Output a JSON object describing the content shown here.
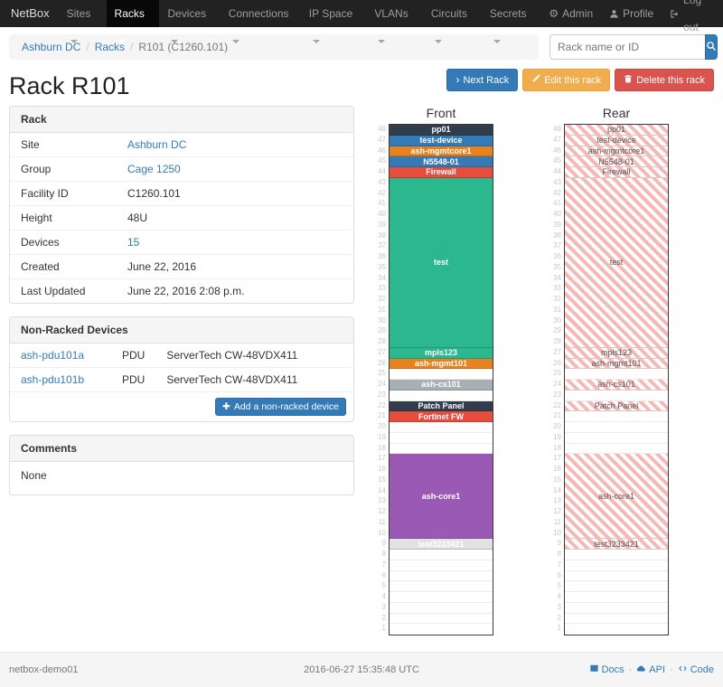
{
  "navbar": {
    "brand": "NetBox",
    "items": [
      {
        "label": "Sites",
        "active": false
      },
      {
        "label": "Racks",
        "active": true
      },
      {
        "label": "Devices",
        "active": false
      },
      {
        "label": "Connections",
        "active": false
      },
      {
        "label": "IP Space",
        "active": false
      },
      {
        "label": "VLANs",
        "active": false
      },
      {
        "label": "Circuits",
        "active": false
      },
      {
        "label": "Secrets",
        "active": false
      }
    ],
    "admin_label": "Admin",
    "profile_label": "Profile",
    "logout_label": "Log out",
    "icons": [
      "gear-icon",
      "user-icon",
      "logout-icon"
    ]
  },
  "breadcrumb": {
    "items": [
      {
        "label": "Ashburn DC",
        "link": true
      },
      {
        "label": "Racks",
        "link": true
      },
      {
        "label": "R101 (C1260.101)",
        "link": false
      }
    ]
  },
  "search": {
    "placeholder": "Rack name or ID",
    "icon": "search-icon"
  },
  "page": {
    "title": "Rack R101",
    "next_button": "Next Rack",
    "edit_button": "Edit this rack",
    "delete_button": "Delete this rack"
  },
  "rack_panel": {
    "title": "Rack",
    "rows": [
      {
        "label": "Site",
        "value": "Ashburn DC",
        "link": true
      },
      {
        "label": "Group",
        "value": "Cage 1250",
        "link": true
      },
      {
        "label": "Facility ID",
        "value": "C1260.101",
        "link": false
      },
      {
        "label": "Height",
        "value": "48U",
        "link": false
      },
      {
        "label": "Devices",
        "value": "15",
        "link": true
      },
      {
        "label": "Created",
        "value": "June 22, 2016",
        "link": false
      },
      {
        "label": "Last Updated",
        "value": "June 22, 2016 2:08 p.m.",
        "link": false
      }
    ]
  },
  "non_racked_panel": {
    "title": "Non-Racked Devices",
    "rows": [
      {
        "name": "ash-pdu101a",
        "role": "PDU",
        "type": "ServerTech CW-48VDX411"
      },
      {
        "name": "ash-pdu101b",
        "role": "PDU",
        "type": "ServerTech CW-48VDX411"
      }
    ],
    "add_button": "Add a non-racked device"
  },
  "comments_panel": {
    "title": "Comments",
    "content": "None"
  },
  "elevations": {
    "front_title": "Front",
    "rear_title": "Rear",
    "units_total": 48,
    "hatch_color": "#f5b8b4",
    "devices": [
      {
        "name": "pp01",
        "top_u": 48,
        "height": 1,
        "color": "#313d4c",
        "text": "#ffffff",
        "shows_rear": true
      },
      {
        "name": "test-device",
        "top_u": 47,
        "height": 1,
        "color": "#337ab7",
        "text": "#ffffff",
        "shows_rear": true
      },
      {
        "name": "ash-mgmtcore1",
        "top_u": 46,
        "height": 1,
        "color": "#e8821e",
        "text": "#ffffff",
        "shows_rear": true
      },
      {
        "name": "N5548-01",
        "top_u": 45,
        "height": 1,
        "color": "#337ab7",
        "text": "#ffffff",
        "shows_rear": true
      },
      {
        "name": "Firewall",
        "top_u": 44,
        "height": 1,
        "color": "#e74c3c",
        "text": "#ffffff",
        "shows_rear": true
      },
      {
        "name": "test",
        "top_u": 43,
        "height": 16,
        "color": "#2bb88e",
        "text": "#ffffff",
        "shows_rear": true
      },
      {
        "name": "mpls123",
        "top_u": 27,
        "height": 1,
        "color": "#2bb88e",
        "text": "#ffffff",
        "shows_rear": true
      },
      {
        "name": "ash-mgmt101",
        "top_u": 26,
        "height": 1,
        "color": "#e8821e",
        "text": "#ffffff",
        "shows_rear": true
      },
      {
        "name": "ash-cs101",
        "top_u": 24,
        "height": 1,
        "color": "#a8b0b5",
        "text": "#ffffff",
        "shows_rear": true
      },
      {
        "name": "Patch Panel",
        "top_u": 22,
        "height": 1,
        "color": "#313d4c",
        "text": "#ffffff",
        "shows_rear": true
      },
      {
        "name": "Fortinet FW",
        "top_u": 21,
        "height": 1,
        "color": "#e74c3c",
        "text": "#ffffff",
        "shows_rear": false
      },
      {
        "name": "ash-core1",
        "top_u": 17,
        "height": 8,
        "color": "#9b59b6",
        "text": "#ffffff",
        "shows_rear": true
      },
      {
        "name": "test3233421",
        "top_u": 9,
        "height": 1,
        "color": "#e2e2e2",
        "text": "#ffffff",
        "shows_rear": true
      }
    ]
  },
  "footer": {
    "hostname": "netbox-demo01",
    "timestamp": "2016-06-27 15:35:48 UTC",
    "docs_label": "Docs",
    "api_label": "API",
    "code_label": "Code",
    "separator": "·"
  },
  "colors": {
    "primary": "#337ab7",
    "warning": "#f0ad4e",
    "danger": "#d9534f",
    "navbar": "#222222"
  }
}
